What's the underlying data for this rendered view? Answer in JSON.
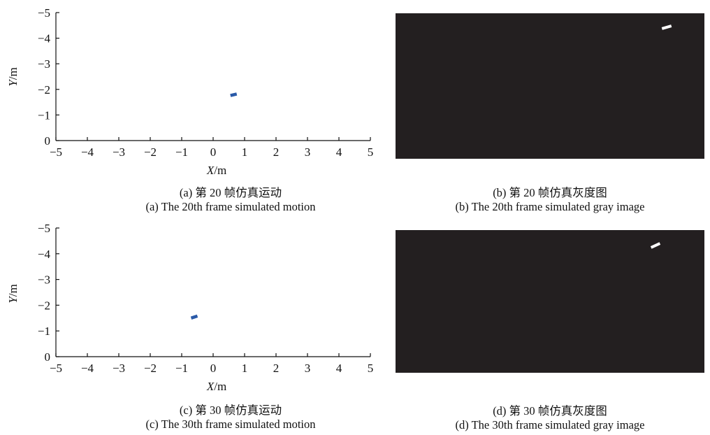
{
  "colors": {
    "marker": "#2a5aa8",
    "gray_image_bg": "#231f20",
    "gray_image_object": "#ffffff",
    "axis": "#111111"
  },
  "captions": {
    "a_cn": "(a) 第 20 帧仿真运动",
    "a_en": "(a) The 20th frame simulated motion",
    "b_cn": "(b) 第 20 帧仿真灰度图",
    "b_en": "(b) The 20th frame simulated gray image",
    "c_cn": "(c) 第 30 帧仿真运动",
    "c_en": "(c) The 30th frame simulated motion",
    "d_cn": "(d) 第 30 帧仿真灰度图",
    "d_en": "(d) The 30th frame simulated gray image"
  },
  "chart_data": [
    {
      "type": "scatter",
      "panel": "a",
      "xlabel": "X/m",
      "ylabel": "Y/m",
      "xlim": [
        -5,
        5
      ],
      "ylim": [
        0,
        -5
      ],
      "y_inverted": true,
      "xticks": [
        "−5",
        "−4",
        "−3",
        "−2",
        "−1",
        "0",
        "1",
        "2",
        "3",
        "4",
        "5"
      ],
      "yticks": [
        "0",
        "−1",
        "−2",
        "−3",
        "−4",
        "−5"
      ],
      "grid": false,
      "segment": {
        "x": [
          0.55,
          0.75
        ],
        "y": [
          -1.76,
          -1.82
        ]
      }
    },
    {
      "type": "scatter",
      "panel": "c",
      "xlabel": "X/m",
      "ylabel": "Y/m",
      "xlim": [
        -5,
        5
      ],
      "ylim": [
        0,
        -5
      ],
      "y_inverted": true,
      "xticks": [
        "−5",
        "−4",
        "−3",
        "−2",
        "−1",
        "0",
        "1",
        "2",
        "3",
        "4",
        "5"
      ],
      "yticks": [
        "0",
        "−1",
        "−2",
        "−3",
        "−4",
        "−5"
      ],
      "grid": false,
      "segment": {
        "x": [
          -0.7,
          -0.5
        ],
        "y": [
          -1.5,
          -1.58
        ]
      }
    }
  ]
}
